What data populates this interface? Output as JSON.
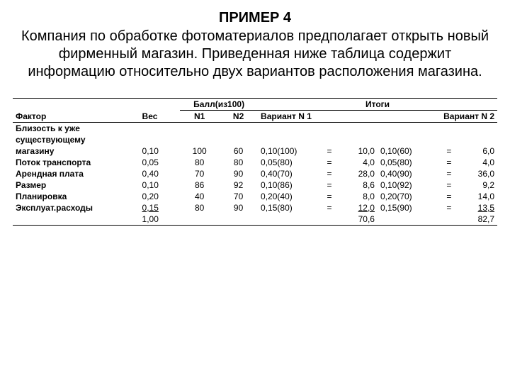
{
  "colors": {
    "bg": "#ffffff",
    "text": "#000000",
    "rule": "#000000"
  },
  "title": "ПРИМЕР 4",
  "intro": "Компания по обработке фотоматериалов предполагает открыть новый фирменный магазин. Приведенная ниже таблица содержит информацию относительно двух вариантов расположения магазина.",
  "headers": {
    "score_group": "Балл(из100)",
    "totals_group": "Итоги",
    "factor": "Фактор",
    "weight": "Вес",
    "n1": "N1",
    "n2": "N2",
    "variant1": "Вариант N 1",
    "variant2": "Вариант N 2"
  },
  "rows": [
    {
      "factor": "Близость к уже существующему магазину",
      "multiline": true,
      "weight": "0,10",
      "n1": "100",
      "n2": "60",
      "v1_expr": "0,10(100)",
      "v1_res": "10,0",
      "v2_expr": "0,10(60)",
      "v2_res": "6,0"
    },
    {
      "factor": "Поток транспорта",
      "weight": "0,05",
      "n1": "80",
      "n2": "80",
      "v1_expr": "0,05(80)",
      "v1_res": "4,0",
      "v2_expr": "0,05(80)",
      "v2_res": "4,0"
    },
    {
      "factor": "Арендная плата",
      "weight": "0,40",
      "n1": "70",
      "n2": "90",
      "v1_expr": "0,40(70)",
      "v1_res": "28,0",
      "v2_expr": "0,40(90)",
      "v2_res": "36,0"
    },
    {
      "factor": "Размер",
      "weight": "0,10",
      "n1": "86",
      "n2": "92",
      "v1_expr": "0,10(86)",
      "v1_res": "8,6",
      "v2_expr": "0,10(92)",
      "v2_res": "9,2"
    },
    {
      "factor": "Планировка",
      "weight": "0,20",
      "n1": "40",
      "n2": "70",
      "v1_expr": "0,20(40)",
      "v1_res": "8,0",
      "v2_expr": "0,20(70)",
      "v2_res": "14,0"
    },
    {
      "factor": "Эксплуат.расходы",
      "last": true,
      "weight": "0,15",
      "n1": "80",
      "n2": "90",
      "v1_expr": "0,15(80)",
      "v1_res": "12,0",
      "v2_expr": "0,15(90)",
      "v2_res": "13,5"
    }
  ],
  "totals": {
    "weight": "1,00",
    "v1": "70,6",
    "v2": "82,7"
  },
  "eq": "="
}
